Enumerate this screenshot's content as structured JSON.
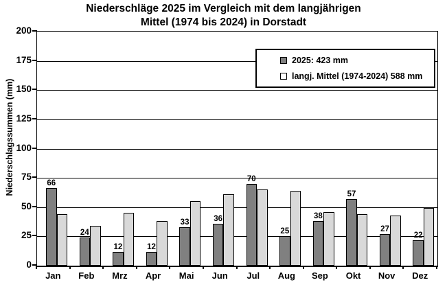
{
  "title": {
    "line1": "Niederschläge 2025 im Vergleich mit dem langjährigen",
    "line2": "Mittel (1974 bis 2024) in Dorstadt"
  },
  "y_axis": {
    "title": "Niederschlagssummen (mm)"
  },
  "legend": {
    "items": [
      {
        "label": "2025: 423 mm",
        "swatch_color": "#808080"
      },
      {
        "label": "langj. Mittel (1974-2024) 588 mm",
        "swatch_color": "#FFFFFF"
      }
    ]
  },
  "colors": {
    "series_2025": "#808080",
    "series_mittel": "#D9D9D9",
    "axis": "#000000",
    "background": "#FFFFFF"
  },
  "chart_data": {
    "type": "bar",
    "title": "Niederschläge 2025 im Vergleich mit dem langjährigen Mittel (1974 bis 2024) in Dorstadt",
    "categories": [
      "Jan",
      "Feb",
      "Mrz",
      "Apr",
      "Mai",
      "Jun",
      "Jul",
      "Aug",
      "Sep",
      "Okt",
      "Nov",
      "Dez"
    ],
    "series": [
      {
        "name": "2025: 423 mm",
        "values": [
          66,
          24,
          12,
          12,
          33,
          36,
          70,
          25,
          38,
          57,
          27,
          22
        ],
        "color": "#808080",
        "data_labels": true,
        "total_mm": 423
      },
      {
        "name": "langj. Mittel (1974-2024) 588 mm",
        "values": [
          44,
          34,
          45,
          38,
          55,
          61,
          65,
          64,
          46,
          44,
          43,
          49
        ],
        "color": "#D9D9D9",
        "data_labels": false,
        "total_mm": 588
      }
    ],
    "xlabel": "",
    "ylabel": "Niederschlagssummen (mm)",
    "ylim": [
      0,
      200
    ],
    "ytick_step": 25,
    "yticks": [
      0,
      25,
      50,
      75,
      100,
      125,
      150,
      175,
      200
    ],
    "grid": true,
    "legend_position": "top-right-inside"
  }
}
